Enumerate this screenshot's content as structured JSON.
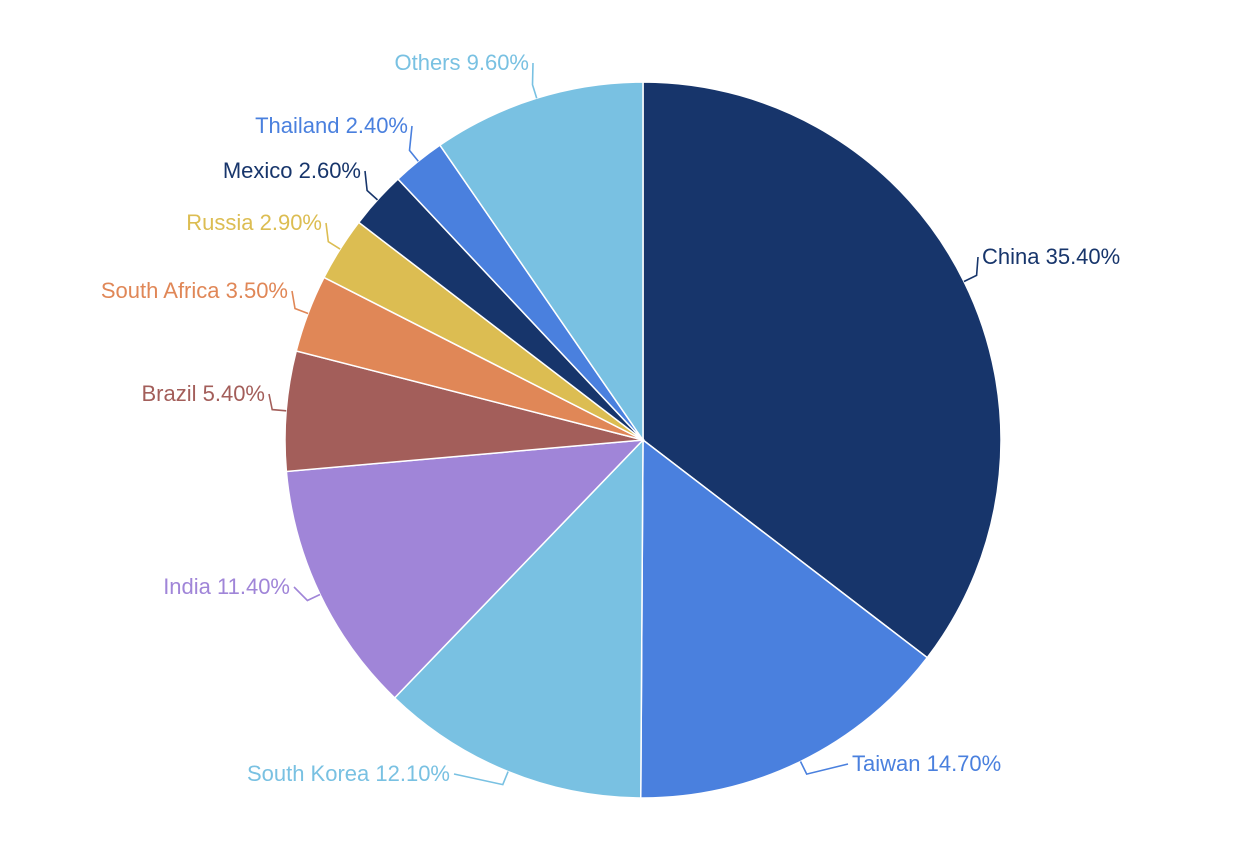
{
  "chart_data": {
    "type": "pie",
    "start": "top",
    "direction": "clockwise",
    "slices": [
      {
        "label": "China",
        "value": 35.4,
        "text": "China 35.40%",
        "color": "#17356b"
      },
      {
        "label": "Taiwan",
        "value": 14.7,
        "text": "Taiwan 14.70%",
        "color": "#4a80de"
      },
      {
        "label": "South Korea",
        "value": 12.1,
        "text": "South Korea 12.10%",
        "color": "#79c1e2"
      },
      {
        "label": "India",
        "value": 11.4,
        "text": "India 11.40%",
        "color": "#a085d8"
      },
      {
        "label": "Brazil",
        "value": 5.4,
        "text": "Brazil 5.40%",
        "color": "#a35e5a"
      },
      {
        "label": "South Africa",
        "value": 3.5,
        "text": "South Africa 3.50%",
        "color": "#e08757"
      },
      {
        "label": "Russia",
        "value": 2.9,
        "text": "Russia 2.90%",
        "color": "#dcbd52"
      },
      {
        "label": "Mexico",
        "value": 2.6,
        "text": "Mexico 2.60%",
        "color": "#17356b"
      },
      {
        "label": "Thailand",
        "value": 2.4,
        "text": "Thailand 2.40%",
        "color": "#4a80de"
      },
      {
        "label": "Others",
        "value": 9.6,
        "text": "Others 9.60%",
        "color": "#79c1e2"
      }
    ]
  }
}
